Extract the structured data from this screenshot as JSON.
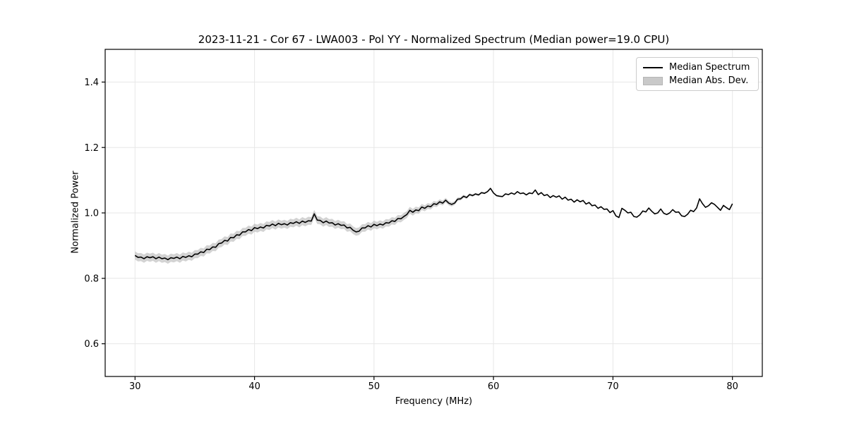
{
  "chart_data": {
    "type": "line",
    "title": "2023-11-21 - Cor 67 - LWA003 - Pol YY - Normalized Spectrum (Median power=19.0 CPU)",
    "xlabel": "Frequency (MHz)",
    "ylabel": "Normalized Power",
    "xlim": [
      27.5,
      82.5
    ],
    "ylim": [
      0.5,
      1.5
    ],
    "xticks": [
      30,
      40,
      50,
      60,
      70,
      80
    ],
    "yticks": [
      0.6,
      0.8,
      1.0,
      1.2,
      1.4
    ],
    "grid": true,
    "legend": {
      "position": "upper right",
      "entries": [
        {
          "label": "Median Spectrum",
          "type": "line",
          "color": "#000000"
        },
        {
          "label": "Median Abs. Dev.",
          "type": "patch",
          "color": "#c9c9c9"
        }
      ]
    },
    "series": [
      {
        "name": "Median Spectrum",
        "color": "#000000",
        "points": [
          [
            30.0,
            0.87
          ],
          [
            30.25,
            0.864
          ],
          [
            30.5,
            0.865
          ],
          [
            30.75,
            0.86
          ],
          [
            31.0,
            0.866
          ],
          [
            31.25,
            0.863
          ],
          [
            31.5,
            0.866
          ],
          [
            31.75,
            0.86
          ],
          [
            32.0,
            0.865
          ],
          [
            32.25,
            0.86
          ],
          [
            32.5,
            0.862
          ],
          [
            32.75,
            0.857
          ],
          [
            33.0,
            0.863
          ],
          [
            33.25,
            0.861
          ],
          [
            33.5,
            0.865
          ],
          [
            33.75,
            0.86
          ],
          [
            34.0,
            0.867
          ],
          [
            34.25,
            0.864
          ],
          [
            34.5,
            0.869
          ],
          [
            34.75,
            0.866
          ],
          [
            35.0,
            0.874
          ],
          [
            35.25,
            0.874
          ],
          [
            35.5,
            0.881
          ],
          [
            35.75,
            0.879
          ],
          [
            36.0,
            0.889
          ],
          [
            36.25,
            0.888
          ],
          [
            36.5,
            0.896
          ],
          [
            36.75,
            0.895
          ],
          [
            37.0,
            0.906
          ],
          [
            37.25,
            0.908
          ],
          [
            37.5,
            0.916
          ],
          [
            37.75,
            0.914
          ],
          [
            38.0,
            0.925
          ],
          [
            38.25,
            0.924
          ],
          [
            38.5,
            0.933
          ],
          [
            38.75,
            0.932
          ],
          [
            39.0,
            0.942
          ],
          [
            39.25,
            0.942
          ],
          [
            39.5,
            0.949
          ],
          [
            39.75,
            0.946
          ],
          [
            40.0,
            0.955
          ],
          [
            40.25,
            0.952
          ],
          [
            40.5,
            0.957
          ],
          [
            40.75,
            0.954
          ],
          [
            41.0,
            0.962
          ],
          [
            41.25,
            0.96
          ],
          [
            41.5,
            0.966
          ],
          [
            41.75,
            0.961
          ],
          [
            42.0,
            0.968
          ],
          [
            42.25,
            0.964
          ],
          [
            42.5,
            0.967
          ],
          [
            42.75,
            0.963
          ],
          [
            43.0,
            0.97
          ],
          [
            43.25,
            0.968
          ],
          [
            43.5,
            0.973
          ],
          [
            43.75,
            0.968
          ],
          [
            44.0,
            0.975
          ],
          [
            44.25,
            0.971
          ],
          [
            44.5,
            0.976
          ],
          [
            44.75,
            0.975
          ],
          [
            45.0,
            0.997
          ],
          [
            45.25,
            0.978
          ],
          [
            45.5,
            0.977
          ],
          [
            45.75,
            0.97
          ],
          [
            46.0,
            0.975
          ],
          [
            46.25,
            0.969
          ],
          [
            46.5,
            0.97
          ],
          [
            46.75,
            0.963
          ],
          [
            47.0,
            0.967
          ],
          [
            47.25,
            0.962
          ],
          [
            47.5,
            0.963
          ],
          [
            47.75,
            0.954
          ],
          [
            48.0,
            0.956
          ],
          [
            48.25,
            0.947
          ],
          [
            48.5,
            0.942
          ],
          [
            48.75,
            0.944
          ],
          [
            49.0,
            0.954
          ],
          [
            49.25,
            0.954
          ],
          [
            49.5,
            0.961
          ],
          [
            49.75,
            0.957
          ],
          [
            50.0,
            0.965
          ],
          [
            50.25,
            0.961
          ],
          [
            50.5,
            0.966
          ],
          [
            50.75,
            0.963
          ],
          [
            51.0,
            0.97
          ],
          [
            51.25,
            0.969
          ],
          [
            51.5,
            0.976
          ],
          [
            51.75,
            0.974
          ],
          [
            52.0,
            0.983
          ],
          [
            52.25,
            0.982
          ],
          [
            52.5,
            0.989
          ],
          [
            52.75,
            0.995
          ],
          [
            53.0,
            1.008
          ],
          [
            53.25,
            1.002
          ],
          [
            53.5,
            1.009
          ],
          [
            53.75,
            1.007
          ],
          [
            54.0,
            1.018
          ],
          [
            54.25,
            1.014
          ],
          [
            54.5,
            1.021
          ],
          [
            54.75,
            1.019
          ],
          [
            55.0,
            1.028
          ],
          [
            55.25,
            1.026
          ],
          [
            55.5,
            1.034
          ],
          [
            55.75,
            1.03
          ],
          [
            56.0,
            1.039
          ],
          [
            56.25,
            1.03
          ],
          [
            56.5,
            1.026
          ],
          [
            56.75,
            1.03
          ],
          [
            57.0,
            1.042
          ],
          [
            57.25,
            1.043
          ],
          [
            57.5,
            1.051
          ],
          [
            57.75,
            1.047
          ],
          [
            58.0,
            1.056
          ],
          [
            58.25,
            1.053
          ],
          [
            58.5,
            1.058
          ],
          [
            58.75,
            1.055
          ],
          [
            59.0,
            1.062
          ],
          [
            59.25,
            1.06
          ],
          [
            59.5,
            1.065
          ],
          [
            59.75,
            1.075
          ],
          [
            60.0,
            1.061
          ],
          [
            60.25,
            1.053
          ],
          [
            60.5,
            1.051
          ],
          [
            60.75,
            1.05
          ],
          [
            61.0,
            1.058
          ],
          [
            61.25,
            1.056
          ],
          [
            61.5,
            1.061
          ],
          [
            61.75,
            1.057
          ],
          [
            62.0,
            1.065
          ],
          [
            62.25,
            1.059
          ],
          [
            62.5,
            1.061
          ],
          [
            62.75,
            1.055
          ],
          [
            63.0,
            1.061
          ],
          [
            63.25,
            1.059
          ],
          [
            63.5,
            1.07
          ],
          [
            63.75,
            1.056
          ],
          [
            64.0,
            1.062
          ],
          [
            64.25,
            1.053
          ],
          [
            64.5,
            1.056
          ],
          [
            64.75,
            1.047
          ],
          [
            65.0,
            1.053
          ],
          [
            65.25,
            1.048
          ],
          [
            65.5,
            1.052
          ],
          [
            65.75,
            1.042
          ],
          [
            66.0,
            1.048
          ],
          [
            66.25,
            1.039
          ],
          [
            66.5,
            1.042
          ],
          [
            66.75,
            1.033
          ],
          [
            67.0,
            1.04
          ],
          [
            67.25,
            1.034
          ],
          [
            67.5,
            1.038
          ],
          [
            67.75,
            1.027
          ],
          [
            68.0,
            1.032
          ],
          [
            68.25,
            1.022
          ],
          [
            68.5,
            1.024
          ],
          [
            68.75,
            1.014
          ],
          [
            69.0,
            1.019
          ],
          [
            69.25,
            1.011
          ],
          [
            69.5,
            1.012
          ],
          [
            69.75,
            1.001
          ],
          [
            70.0,
            1.007
          ],
          [
            70.25,
            0.991
          ],
          [
            70.5,
            0.986
          ],
          [
            70.75,
            1.014
          ],
          [
            71.0,
            1.008
          ],
          [
            71.25,
            1.0
          ],
          [
            71.5,
            1.002
          ],
          [
            71.75,
            0.989
          ],
          [
            72.0,
            0.987
          ],
          [
            72.25,
            0.994
          ],
          [
            72.5,
            1.006
          ],
          [
            72.75,
            1.003
          ],
          [
            73.0,
            1.015
          ],
          [
            73.25,
            1.005
          ],
          [
            73.5,
            0.997
          ],
          [
            73.75,
            1.0
          ],
          [
            74.0,
            1.012
          ],
          [
            74.25,
            0.999
          ],
          [
            74.5,
            0.995
          ],
          [
            74.75,
            1.0
          ],
          [
            75.0,
            1.01
          ],
          [
            75.25,
            1.002
          ],
          [
            75.5,
            1.003
          ],
          [
            75.75,
            0.991
          ],
          [
            76.0,
            0.989
          ],
          [
            76.25,
            0.996
          ],
          [
            76.5,
            1.008
          ],
          [
            76.75,
            1.004
          ],
          [
            77.0,
            1.015
          ],
          [
            77.25,
            1.043
          ],
          [
            77.5,
            1.028
          ],
          [
            77.75,
            1.017
          ],
          [
            78.0,
            1.022
          ],
          [
            78.25,
            1.031
          ],
          [
            78.5,
            1.026
          ],
          [
            78.75,
            1.017
          ],
          [
            79.0,
            1.008
          ],
          [
            79.25,
            1.023
          ],
          [
            79.5,
            1.016
          ],
          [
            79.75,
            1.01
          ],
          [
            80.0,
            1.028
          ]
        ]
      }
    ],
    "band": {
      "name": "Median Abs. Dev.",
      "color": "#9e9e9e",
      "opacity": 0.45,
      "halfwidth_points": [
        [
          30,
          0.0125
        ],
        [
          46,
          0.012
        ],
        [
          50,
          0.0115
        ],
        [
          53,
          0.0105
        ],
        [
          55,
          0.0085
        ],
        [
          56,
          0.007
        ],
        [
          57,
          0.0055
        ],
        [
          58,
          0.004
        ],
        [
          59,
          0.003
        ],
        [
          60,
          0.0022
        ],
        [
          63,
          0.0018
        ],
        [
          80,
          0.0015
        ]
      ]
    },
    "layout": {
      "axes_rect": [
        149,
        70,
        931,
        464
      ],
      "grid_color": "#e7e7e7",
      "spine_color": "#000000",
      "tick_length": 5,
      "tick_label_font_px": 13,
      "line_width": 1.6
    }
  }
}
